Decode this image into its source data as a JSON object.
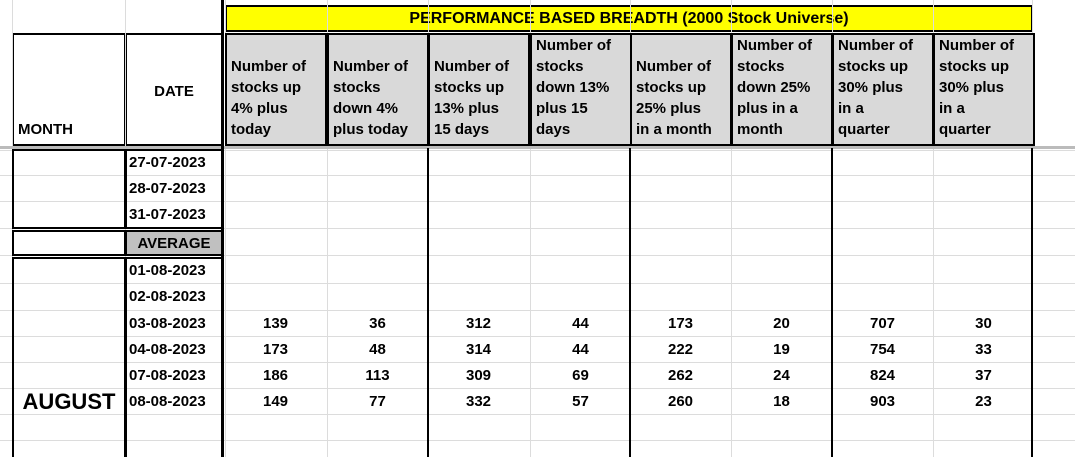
{
  "header": {
    "title": "PERFORMANCE BASED BREADTH (2000 Stock Universe)",
    "month_label": "MONTH",
    "date_label": "DATE",
    "columns": [
      "Number of\nstocks up\n4% plus\ntoday",
      "Number of\nstocks\ndown 4%\nplus today",
      "Number of\nstocks up\n13% plus\n15 days",
      "Number of\nstocks\ndown 13%\nplus 15\ndays",
      "Number of\nstocks up\n25% plus\nin a month",
      "Number of\nstocks\ndown 25%\nplus in a\nmonth",
      "Number of\nstocks up\n30% plus\nin a\nquarter",
      "Number of\nstocks up\n30% plus\nin a\nquarter"
    ]
  },
  "july_rows": [
    {
      "date": "27-07-2023"
    },
    {
      "date": "28-07-2023"
    },
    {
      "date": "31-07-2023"
    }
  ],
  "average_label": "AVERAGE",
  "august": {
    "month": "AUGUST",
    "rows": [
      {
        "date": "01-08-2023"
      },
      {
        "date": "02-08-2023"
      },
      {
        "date": "03-08-2023",
        "values": [
          139,
          36,
          312,
          44,
          173,
          20,
          707,
          30
        ]
      },
      {
        "date": "04-08-2023",
        "values": [
          173,
          48,
          314,
          44,
          222,
          19,
          754,
          33
        ]
      },
      {
        "date": "07-08-2023",
        "values": [
          186,
          113,
          309,
          69,
          262,
          24,
          824,
          37
        ]
      },
      {
        "date": "08-08-2023",
        "values": [
          149,
          77,
          332,
          57,
          260,
          18,
          903,
          23
        ]
      }
    ]
  }
}
